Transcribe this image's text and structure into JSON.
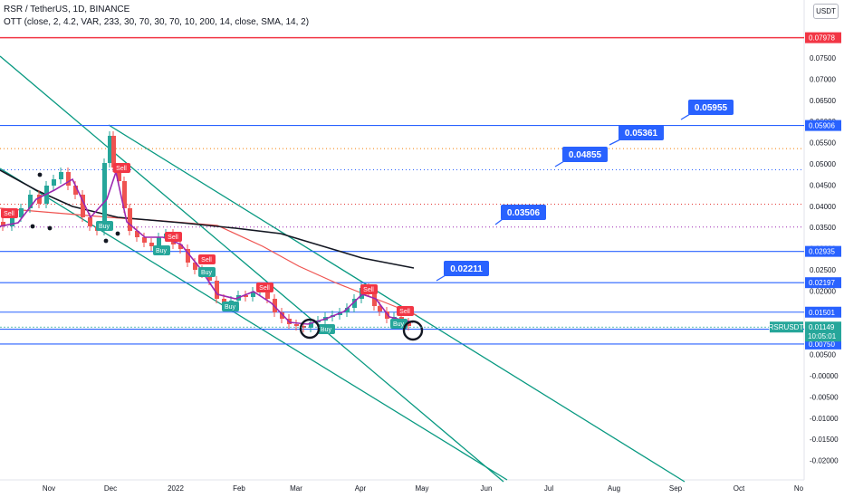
{
  "header": {
    "title": "RSR / TetherUS, 1D, BINANCE",
    "indicator": "OTT (close, 2, 4.2, VAR, 233, 30, 70, 30, 70, 10, 200, 14, close, SMA, 14, 2)"
  },
  "currency_button": "USDT",
  "colors": {
    "horizontal_line": "#2962ff",
    "top_line": "#f23645",
    "channel": "#089981",
    "callout": "#2962ff",
    "sell": "#f23645",
    "buy": "#26a69a",
    "ma_red": "#ef5350",
    "ma_black": "#131722",
    "ott": "#9c27b0"
  },
  "chart_data": {
    "type": "candlestick",
    "symbol": "RSRUSDT",
    "y_ticks": [
      "0.07750",
      "0.07500",
      "0.07000",
      "0.06500",
      "0.06000",
      "0.05500",
      "0.05000",
      "0.04500",
      "0.04000",
      "0.03500",
      "0.03000",
      "0.02500",
      "0.02000",
      "0.01500",
      "0.01000",
      "0.00500",
      "-0.00000",
      "-0.00500",
      "-0.01000",
      "-0.01500",
      "-0.02000"
    ],
    "x_ticks": [
      "Nov",
      "Dec",
      "2022",
      "Feb",
      "Mar",
      "Apr",
      "May",
      "Jun",
      "Jul",
      "Aug",
      "Sep",
      "Oct",
      "No"
    ],
    "price_levels": [
      {
        "value": 0.07978,
        "label": "0.07978",
        "style": "solid-red"
      },
      {
        "value": 0.05906,
        "label": "0.05906",
        "style": "solid-blue"
      },
      {
        "value": 0.02935,
        "label": "0.02935",
        "style": "solid-blue"
      },
      {
        "value": 0.02197,
        "label": "0.02197",
        "style": "solid-blue"
      },
      {
        "value": 0.01501,
        "label": "0.01501",
        "style": "solid-blue"
      },
      {
        "value": 0.011,
        "label": "0.01100",
        "style": "solid-blue"
      },
      {
        "value": 0.0075,
        "label": "0.00750",
        "style": "solid-blue"
      }
    ],
    "dotted_levels": [
      0.0536,
      0.0486,
      0.0405,
      0.0351
    ],
    "callouts": [
      {
        "label": "0.05955",
        "value": 0.05955
      },
      {
        "label": "0.05361",
        "value": 0.05361
      },
      {
        "label": "0.04855",
        "value": 0.04855
      },
      {
        "label": "0.03506",
        "value": 0.03506
      },
      {
        "label": "0.02211",
        "value": 0.02211
      }
    ],
    "last_price": {
      "label": "RSRUSDT",
      "value": "0.01149",
      "countdown": "10:05:01"
    },
    "signals": [
      "Sell",
      "Sell",
      "Buy",
      "Sell",
      "Buy",
      "Sell",
      "Buy",
      "Sell",
      "Buy",
      "Sell",
      "Buy",
      "Sell",
      "Buy"
    ]
  }
}
